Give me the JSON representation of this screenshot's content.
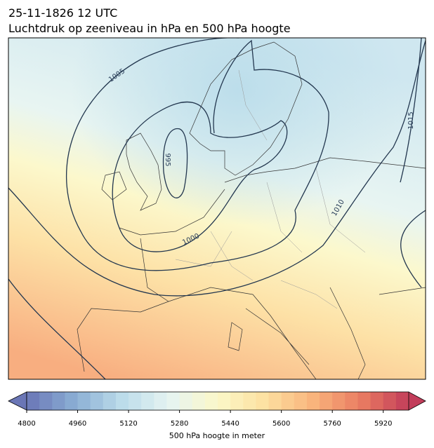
{
  "header": {
    "date": "25-11-1826 12 UTC",
    "title": "Luchtdruk op zeeniveau in hPa en 500 hPa hoogte"
  },
  "map": {
    "contour_labels": [
      "1005",
      "995",
      "1000",
      "1010",
      "1015"
    ]
  },
  "colorbar": {
    "label": "500 hPa hoogte in meter",
    "range": [
      4800,
      6000
    ],
    "ticks": [
      4800,
      4960,
      5120,
      5280,
      5440,
      5600,
      5760,
      5920
    ],
    "colors": [
      "#6a76b6",
      "#8aaed4",
      "#bcdcea",
      "#e6f4f2",
      "#fbf8c8",
      "#fde0a0",
      "#f9b47c",
      "#ea7c62",
      "#c23d5a"
    ]
  }
}
